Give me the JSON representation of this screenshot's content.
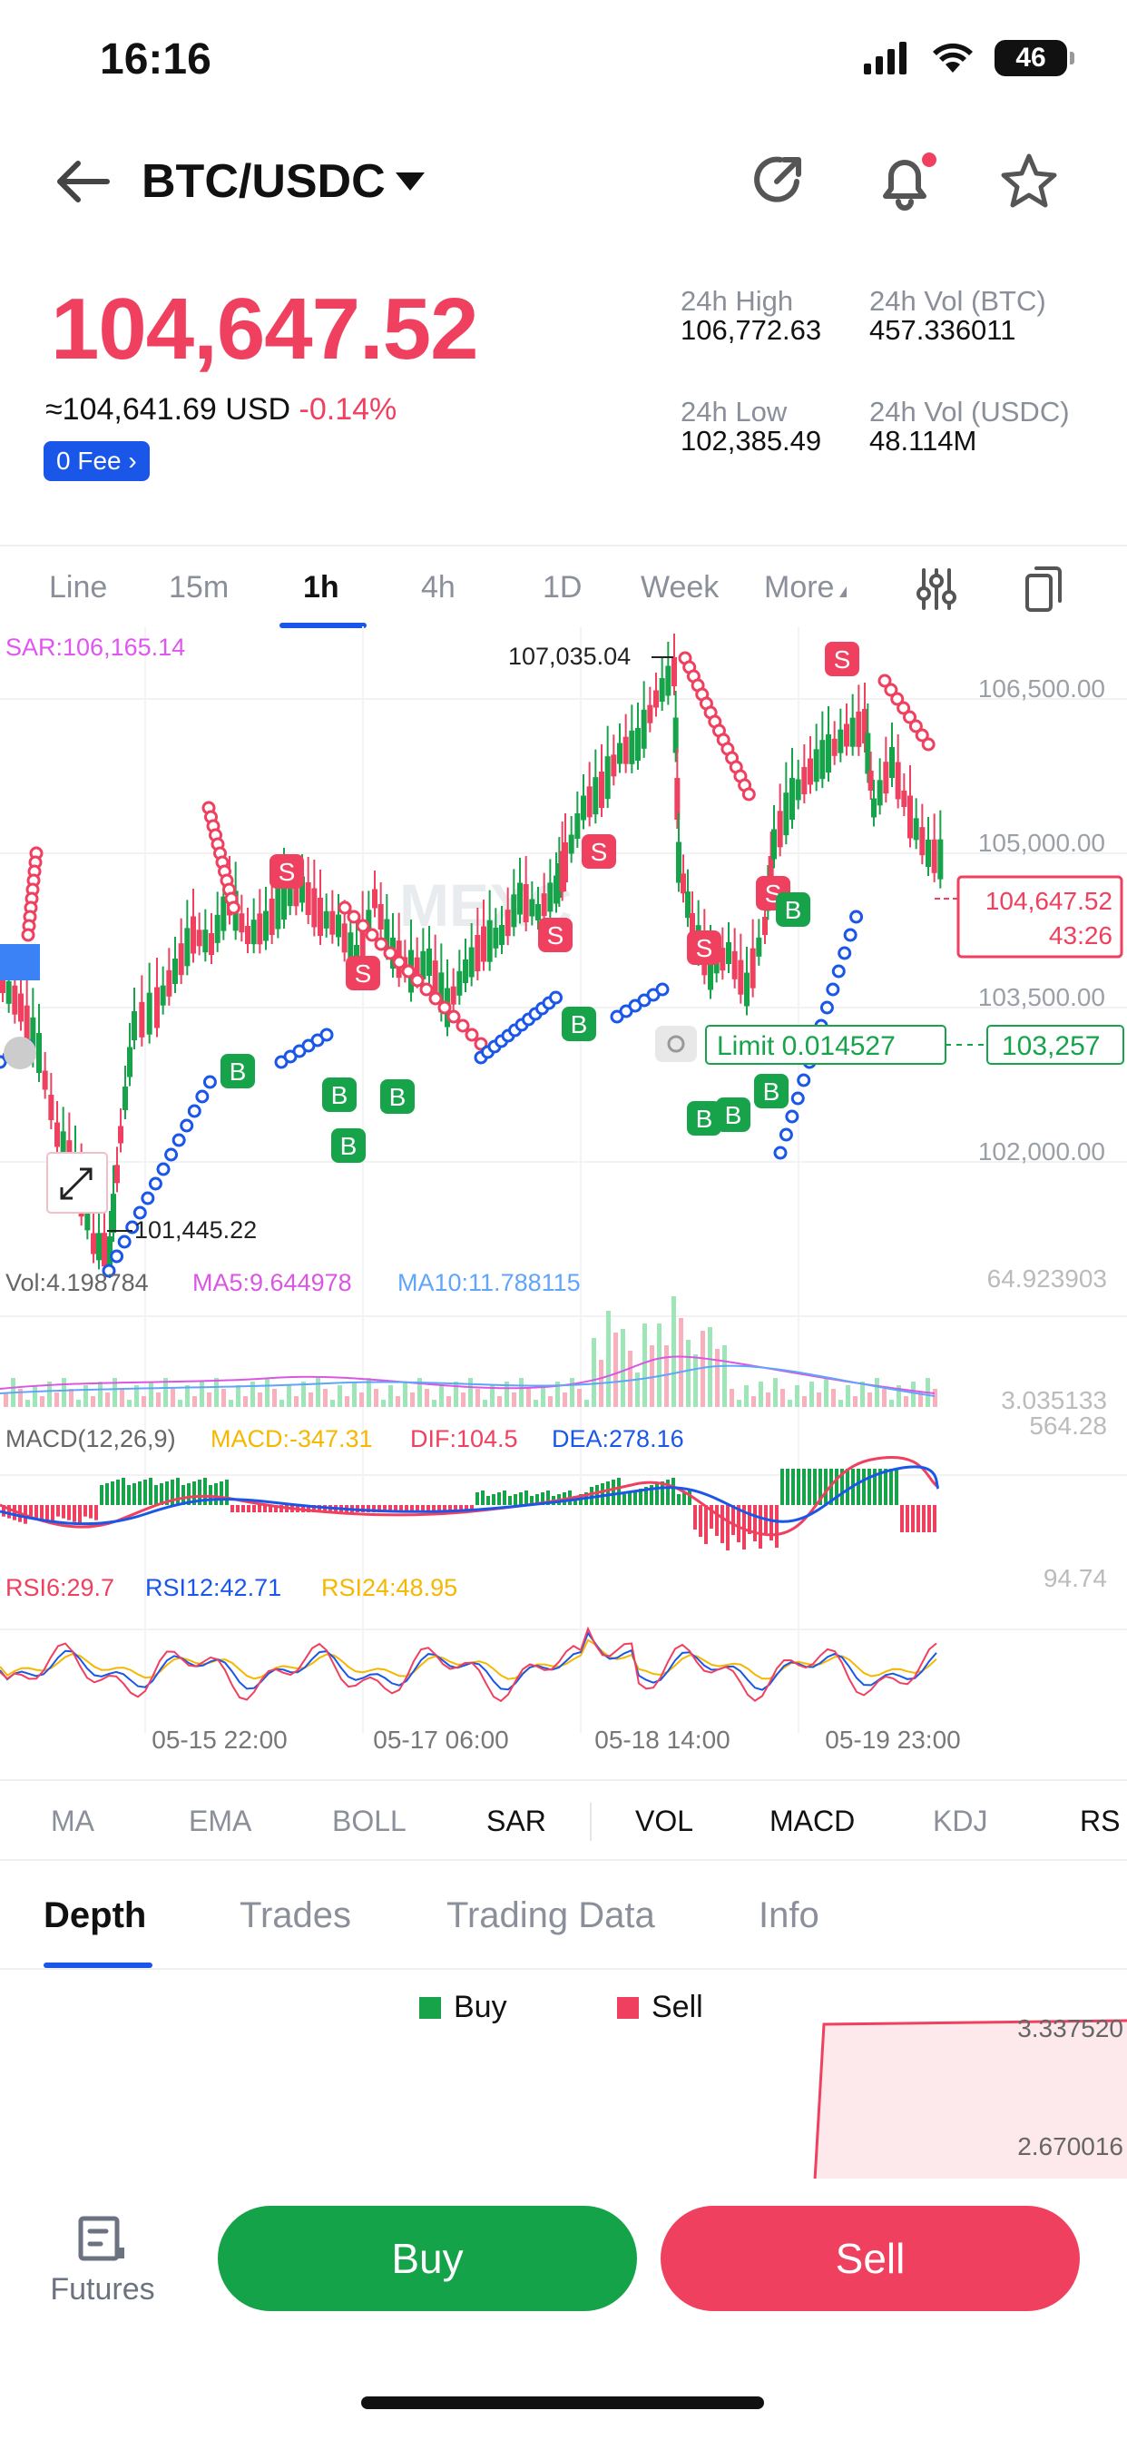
{
  "status": {
    "time": "16:16",
    "battery": "46"
  },
  "header": {
    "pair": "BTC/USDC"
  },
  "price": {
    "last": "104,647.52",
    "approx_prefix": "≈",
    "approx": "104,641.69",
    "currency": "USD",
    "change": "-0.14%",
    "fee_badge": "0 Fee"
  },
  "stats": [
    {
      "label": "24h High",
      "value": "106,772.63"
    },
    {
      "label": "24h Vol (BTC)",
      "value": "457.336011"
    },
    {
      "label": "24h Low",
      "value": "102,385.49"
    },
    {
      "label": "24h Vol  (USDC)",
      "value": "48.114M"
    }
  ],
  "timeframes": [
    "Line",
    "15m",
    "1h",
    "4h",
    "1D",
    "Week",
    "More"
  ],
  "timeframe_active": "1h",
  "chart": {
    "sar": "SAR:106,165.14",
    "watermark": "MEXC",
    "high_marker": "107,035.04",
    "low_marker": "101,445.22",
    "y_ticks": [
      "106,500.00",
      "105,000.00",
      "103,500.00",
      "102,000.00"
    ],
    "current_price": "104,647.52",
    "countdown": "43:26",
    "limit_label": "Limit  0.014527",
    "limit_price": "103,257",
    "buy_mark": "B",
    "sell_mark": "S",
    "vol": {
      "vol": "Vol:4.198784",
      "ma5": "MA5:9.644978",
      "ma10": "MA10:11.788115",
      "max": "64.923903",
      "min": "3.035133"
    },
    "macd": {
      "title": "MACD(12,26,9)",
      "macd": "MACD:-347.31",
      "dif": "DIF:104.5",
      "dea": "DEA:278.16",
      "max": "564.28"
    },
    "rsi": {
      "rsi6": "RSI6:29.7",
      "rsi12": "RSI12:42.71",
      "rsi24": "RSI24:48.95",
      "max": "94.74"
    },
    "x_ticks": [
      "05-15 22:00",
      "05-17 06:00",
      "05-18 14:00",
      "05-19 23:00"
    ],
    "colors": {
      "up": "#16a34a",
      "down": "#f0405f",
      "sar": "#e056f0",
      "ma5": "#d957e3",
      "ma10": "#60a5fa",
      "macd": "#f5b700",
      "dif": "#f0405f",
      "dea": "#1a57e8"
    }
  },
  "indicators": [
    "MA",
    "EMA",
    "BOLL",
    "SAR",
    "VOL",
    "MACD",
    "KDJ",
    "RS"
  ],
  "indicators_on": [
    "SAR",
    "VOL",
    "MACD"
  ],
  "sections": [
    "Depth",
    "Trades",
    "Trading Data",
    "Info"
  ],
  "section_active": "Depth",
  "depth": {
    "legend_buy": "Buy",
    "legend_sell": "Sell",
    "y_top": "3.337520",
    "y_mid": "2.670016"
  },
  "bottom": {
    "futures": "Futures",
    "buy": "Buy",
    "sell": "Sell"
  }
}
